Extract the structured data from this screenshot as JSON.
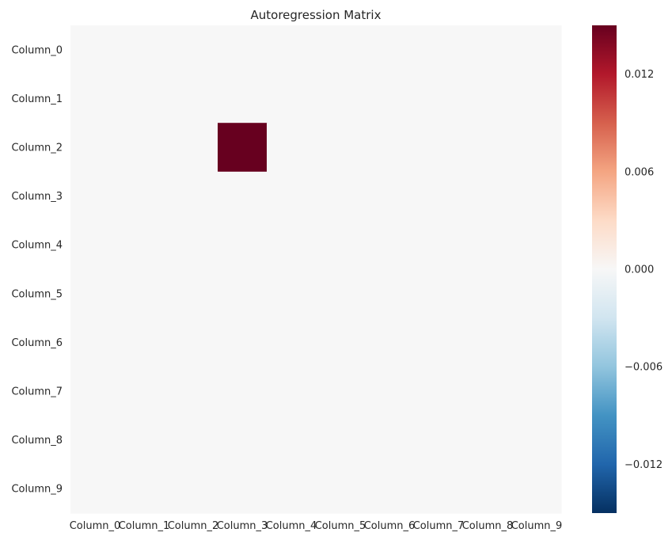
{
  "chart_data": {
    "type": "heatmap",
    "title": "Autoregression Matrix",
    "xlabel": "",
    "ylabel": "",
    "rows": [
      "Column_0",
      "Column_1",
      "Column_2",
      "Column_3",
      "Column_4",
      "Column_5",
      "Column_6",
      "Column_7",
      "Column_8",
      "Column_9"
    ],
    "columns": [
      "Column_0",
      "Column_1",
      "Column_2",
      "Column_3",
      "Column_4",
      "Column_5",
      "Column_6",
      "Column_7",
      "Column_8",
      "Column_9"
    ],
    "values": [
      [
        0,
        0,
        0,
        0,
        0,
        0,
        0,
        0,
        0,
        0
      ],
      [
        0,
        0,
        0,
        0,
        0,
        0,
        0,
        0,
        0,
        0
      ],
      [
        0,
        0,
        0,
        0.015,
        0,
        0,
        0,
        0,
        0,
        0
      ],
      [
        0,
        0,
        0,
        0,
        0,
        0,
        0,
        0,
        0,
        0
      ],
      [
        0,
        0,
        0,
        0,
        0,
        0,
        0,
        0,
        0,
        0
      ],
      [
        0,
        0,
        0,
        0,
        0,
        0,
        0,
        0,
        0,
        0
      ],
      [
        0,
        0,
        0,
        0,
        0,
        0,
        0,
        0,
        0,
        0
      ],
      [
        0,
        0,
        0,
        0,
        0,
        0,
        0,
        0,
        0,
        0
      ],
      [
        0,
        0,
        0,
        0,
        0,
        0,
        0,
        0,
        0,
        0
      ],
      [
        0,
        0,
        0,
        0,
        0,
        0,
        0,
        0,
        0,
        0
      ]
    ],
    "colormap": "RdBu_r",
    "vmin": -0.015,
    "vmax": 0.015,
    "colorbar_ticks": [
      0.012,
      0.006,
      0.0,
      -0.006,
      -0.012
    ],
    "colorbar_tick_labels": [
      "0.012",
      "0.006",
      "0.000",
      "−0.006",
      "−0.012"
    ],
    "grid": false
  }
}
